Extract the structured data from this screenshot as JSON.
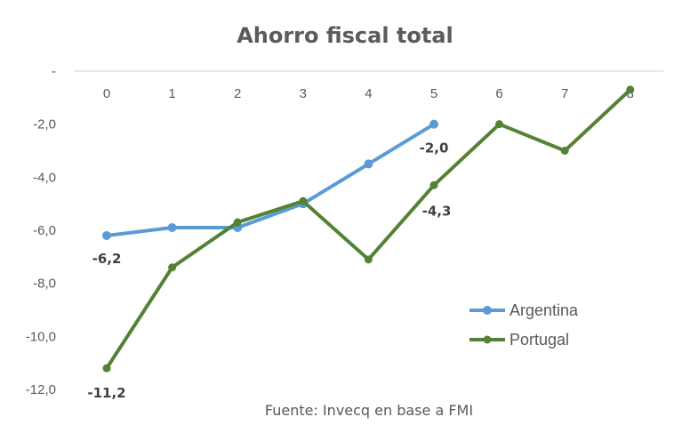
{
  "chart_data": {
    "type": "line",
    "title": "Ahorro fiscal total",
    "x": [
      0,
      1,
      2,
      3,
      4,
      5,
      6,
      7,
      8
    ],
    "x_tick_labels": [
      "0",
      "1",
      "2",
      "3",
      "4",
      "5",
      "6",
      "7",
      "8"
    ],
    "y_tick_labels": [
      "-",
      "-2,0",
      "-4,0",
      "-6,0",
      "-8,0",
      "-10,0",
      "-12,0"
    ],
    "ylim": [
      -12,
      0
    ],
    "xlabel": "",
    "ylabel": "",
    "grid": false,
    "legend_position": "right",
    "series": [
      {
        "name": "Argentina",
        "color": "#5b9bd5",
        "x": [
          0,
          1,
          2,
          3,
          4,
          5
        ],
        "values": [
          -6.2,
          -5.9,
          -5.9,
          -5.0,
          -3.5,
          -2.0
        ]
      },
      {
        "name": "Portugal",
        "color": "#548235",
        "x": [
          0,
          1,
          2,
          3,
          4,
          5,
          6,
          7,
          8
        ],
        "values": [
          -11.2,
          -7.4,
          -5.7,
          -4.9,
          -7.1,
          -4.3,
          -2.0,
          -3.0,
          -0.7
        ]
      }
    ],
    "annotations": [
      {
        "text": "-6,2",
        "series": "Argentina",
        "x": 0
      },
      {
        "text": "-2,0",
        "series": "Argentina",
        "x": 5
      },
      {
        "text": "-11,2",
        "series": "Portugal",
        "x": 0
      },
      {
        "text": "-4,3",
        "series": "Portugal",
        "x": 5
      }
    ],
    "source": "Fuente: Invecq en base a FMI"
  }
}
